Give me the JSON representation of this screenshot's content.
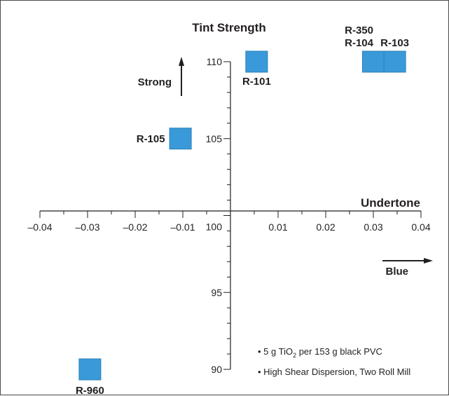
{
  "chart_data": {
    "type": "scatter",
    "title": "",
    "x_axis_title": "Undertone",
    "y_axis_title": "Tint Strength",
    "xlim": [
      -0.04,
      0.04
    ],
    "ylim": [
      90,
      110
    ],
    "x_ticks": [
      -0.04,
      -0.03,
      -0.02,
      -0.01,
      0.01,
      0.02,
      0.03,
      0.04
    ],
    "x_tick_labels": [
      "–0.04",
      "–0.03",
      "–0.02",
      "–0.01",
      "0.01",
      "0.02",
      "0.03",
      "0.04"
    ],
    "y_ticks": [
      90,
      95,
      100,
      105,
      110
    ],
    "y_tick_labels": [
      "90",
      "95",
      "100",
      "105",
      "110"
    ],
    "y_direction_label": "Strong",
    "x_direction_label": "Blue",
    "grid": false,
    "marker_color": "#3a9ad9",
    "points": [
      {
        "name": "R-101",
        "x": 0.0055,
        "y": 110.0
      },
      {
        "name": "R-104",
        "x": 0.03,
        "y": 110.0
      },
      {
        "name": "R-103",
        "x": 0.0345,
        "y": 110.0
      },
      {
        "name": "R-105",
        "x": -0.0105,
        "y": 105.0
      },
      {
        "name": "R-960",
        "x": -0.0295,
        "y": 90.0
      }
    ],
    "stacked_label_top": "R-350",
    "notes_prefix_1": "• 5 g TiO",
    "notes_sub_1": "2",
    "notes_suffix_1": " per 153 g black PVC",
    "note_2": "• High Shear Dispersion, Two Roll Mill"
  }
}
